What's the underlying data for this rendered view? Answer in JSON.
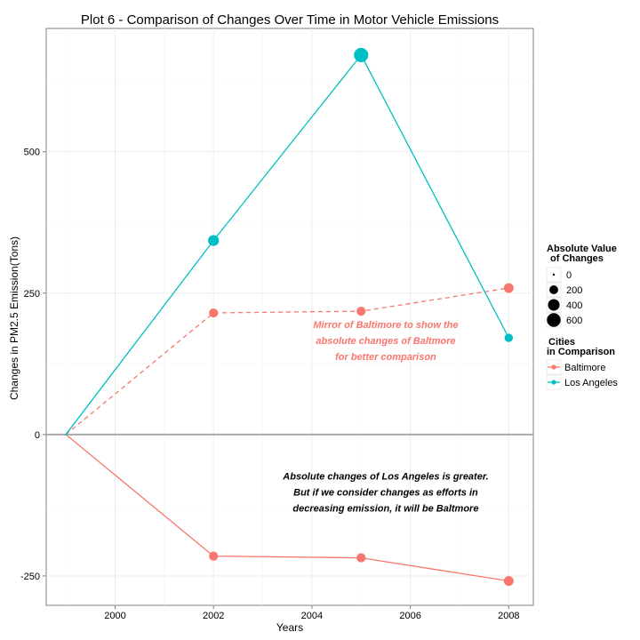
{
  "chart_data": {
    "type": "line",
    "title": "Plot 6 - Comparison of Changes Over Time in Motor Vehicle Emissions",
    "xlabel": "Years",
    "ylabel": "Changes in PM2.5 Emission(Tons)",
    "xlim": [
      1998.6,
      2008.5
    ],
    "ylim": [
      -302,
      718
    ],
    "x_ticks": [
      2000,
      2002,
      2004,
      2006,
      2008
    ],
    "y_ticks": [
      -250,
      0,
      250,
      500
    ],
    "grid": true,
    "series": [
      {
        "name": "Baltimore",
        "color": "#f8766d",
        "dash": "solid",
        "x": [
          1999,
          2002,
          2005,
          2008
        ],
        "y": [
          0,
          -215,
          -218,
          -259
        ],
        "size_values": [
          0,
          215,
          218,
          259
        ]
      },
      {
        "name": "Mirror of Baltimore",
        "color": "#f8766d",
        "dash": "dashed",
        "x": [
          1999,
          2002,
          2005,
          2008
        ],
        "y": [
          0,
          215,
          218,
          259
        ],
        "size_values": [
          0,
          215,
          218,
          259
        ]
      },
      {
        "name": "Los Angeles",
        "color": "#00bfc4",
        "dash": "solid",
        "x": [
          1999,
          2002,
          2005,
          2008
        ],
        "y": [
          0,
          343,
          671,
          171
        ],
        "size_values": [
          0,
          343,
          671,
          171
        ]
      }
    ],
    "legend_size": {
      "title_lines": [
        "Absolute Value",
        "of Changes"
      ],
      "entries": [
        "0",
        "200",
        "400",
        "600"
      ],
      "values": [
        0,
        200,
        400,
        600
      ]
    },
    "legend_color": {
      "title_lines": [
        "Cities",
        "in Comparison"
      ],
      "entries": [
        "Baltimore",
        "Los Angeles"
      ]
    },
    "annotations": [
      {
        "lines": [
          "Mirror of Baltimore to show the",
          "absolute changes of Baltmore",
          "for better comparison"
        ],
        "x": 2005.5,
        "y": 188,
        "color": "#f8766d"
      },
      {
        "lines": [
          "Absolute changes of Los Angeles is greater.",
          "But if we consider changes as efforts in",
          "decreasing emission, it will be Baltmore"
        ],
        "x": 2005.5,
        "y": -80,
        "color": "#000000"
      }
    ]
  }
}
